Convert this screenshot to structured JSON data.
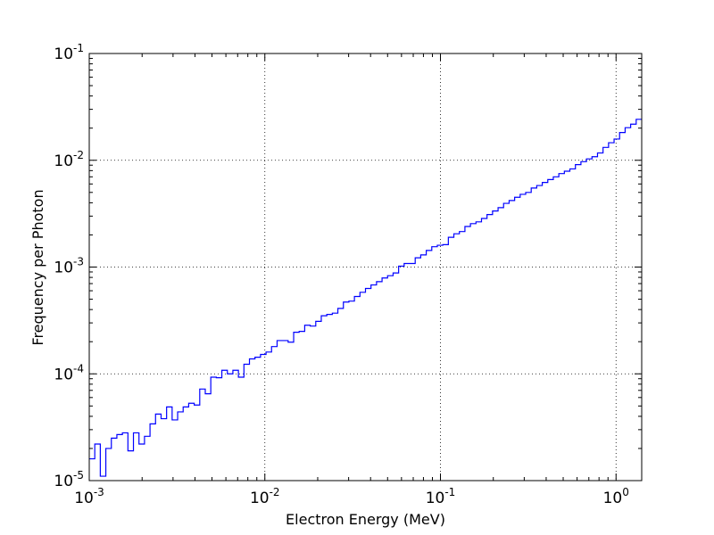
{
  "chart_data": {
    "type": "line",
    "style": "step histogram",
    "xscale": "log",
    "yscale": "log",
    "xlabel": "Electron Energy (MeV)",
    "ylabel": "Frequency per Photon",
    "xlim": [
      0.001,
      1.4
    ],
    "ylim": [
      1e-05,
      0.1
    ],
    "grid": true,
    "grid_style": "dotted",
    "x_ticks": [
      {
        "value": 0.001,
        "base": "10",
        "exp": "-3"
      },
      {
        "value": 0.01,
        "base": "10",
        "exp": "-2"
      },
      {
        "value": 0.1,
        "base": "10",
        "exp": "-1"
      },
      {
        "value": 1,
        "base": "10",
        "exp": "0"
      }
    ],
    "y_ticks": [
      {
        "value": 1e-05,
        "base": "10",
        "exp": "-5"
      },
      {
        "value": 0.0001,
        "base": "10",
        "exp": "-4"
      },
      {
        "value": 0.001,
        "base": "10",
        "exp": "-3"
      },
      {
        "value": 0.01,
        "base": "10",
        "exp": "-2"
      },
      {
        "value": 0.1,
        "base": "10",
        "exp": "-1"
      }
    ],
    "line_color": "#0000ff",
    "series": [
      {
        "y": [
          1.6e-05,
          2.2e-05,
          1.1e-05,
          2e-05,
          2.5e-05,
          2.7e-05,
          2.8e-05,
          1.9e-05,
          2.8e-05,
          2.2e-05,
          2.6e-05,
          3.4e-05,
          4.2e-05,
          3.8e-05,
          4.9e-05,
          3.7e-05,
          4.4e-05,
          4.9e-05,
          5.3e-05,
          5.1e-05,
          7.2e-05,
          6.5e-05,
          9.3e-05,
          9.2e-05,
          0.000108,
          0.0001,
          0.000108,
          9.3e-05,
          0.000123,
          0.000138,
          0.000143,
          0.000152,
          0.00016,
          0.00018,
          0.000205,
          0.000205,
          0.000198,
          0.000245,
          0.00025,
          0.000285,
          0.00028,
          0.00031,
          0.00035,
          0.00036,
          0.00037,
          0.00041,
          0.00047,
          0.00048,
          0.00053,
          0.00058,
          0.00063,
          0.00068,
          0.00073,
          0.00079,
          0.00083,
          0.00088,
          0.00102,
          0.00108,
          0.00108,
          0.00122,
          0.0013,
          0.00143,
          0.00155,
          0.0016,
          0.00162,
          0.0019,
          0.00205,
          0.00215,
          0.0024,
          0.00255,
          0.00265,
          0.00285,
          0.0031,
          0.00335,
          0.0036,
          0.00395,
          0.0042,
          0.0045,
          0.0048,
          0.005,
          0.0055,
          0.0058,
          0.0062,
          0.0066,
          0.007,
          0.0075,
          0.0079,
          0.0083,
          0.0091,
          0.0097,
          0.0103,
          0.0108,
          0.0117,
          0.0132,
          0.0146,
          0.0158,
          0.0182,
          0.0202,
          0.0218,
          0.0242
        ]
      }
    ]
  }
}
